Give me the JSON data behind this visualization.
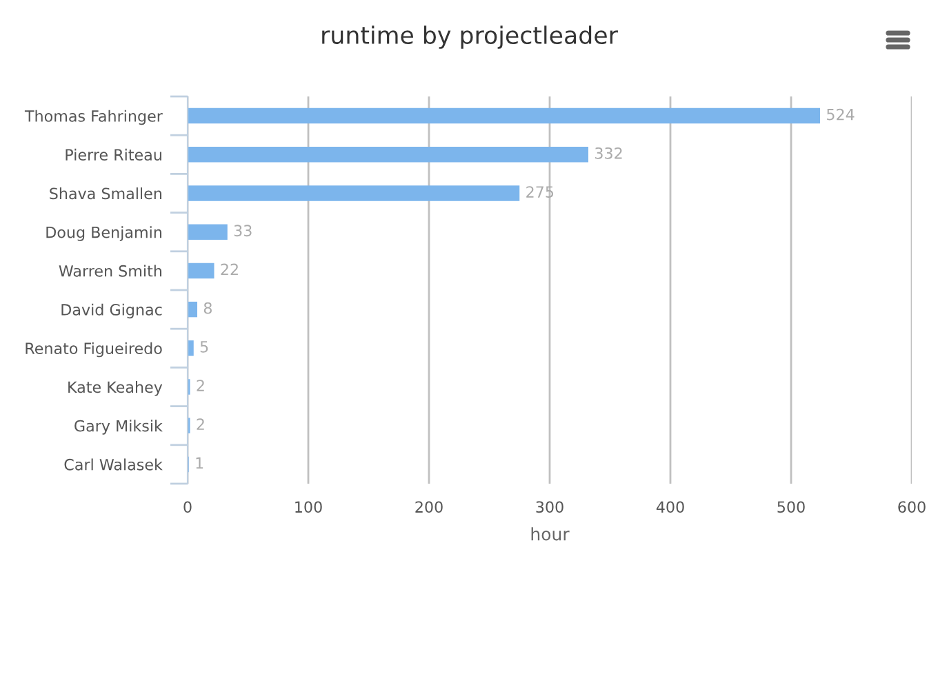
{
  "chart_data": {
    "type": "bar",
    "orientation": "horizontal",
    "title": "runtime by projectleader",
    "xlabel": "hour",
    "categories": [
      "Thomas Fahringer",
      "Pierre Riteau",
      "Shava Smallen",
      "Doug Benjamin",
      "Warren Smith",
      "David Gignac",
      "Renato Figueiredo",
      "Kate Keahey",
      "Gary Miksik",
      "Carl Walasek"
    ],
    "values": [
      524,
      332,
      275,
      33,
      22,
      8,
      5,
      2,
      2,
      1
    ],
    "color": "#7cb5ec",
    "xlim": [
      0,
      600
    ],
    "xticks": [
      0,
      100,
      200,
      300,
      400,
      500,
      600
    ],
    "grid": "x",
    "data_labels": true
  }
}
